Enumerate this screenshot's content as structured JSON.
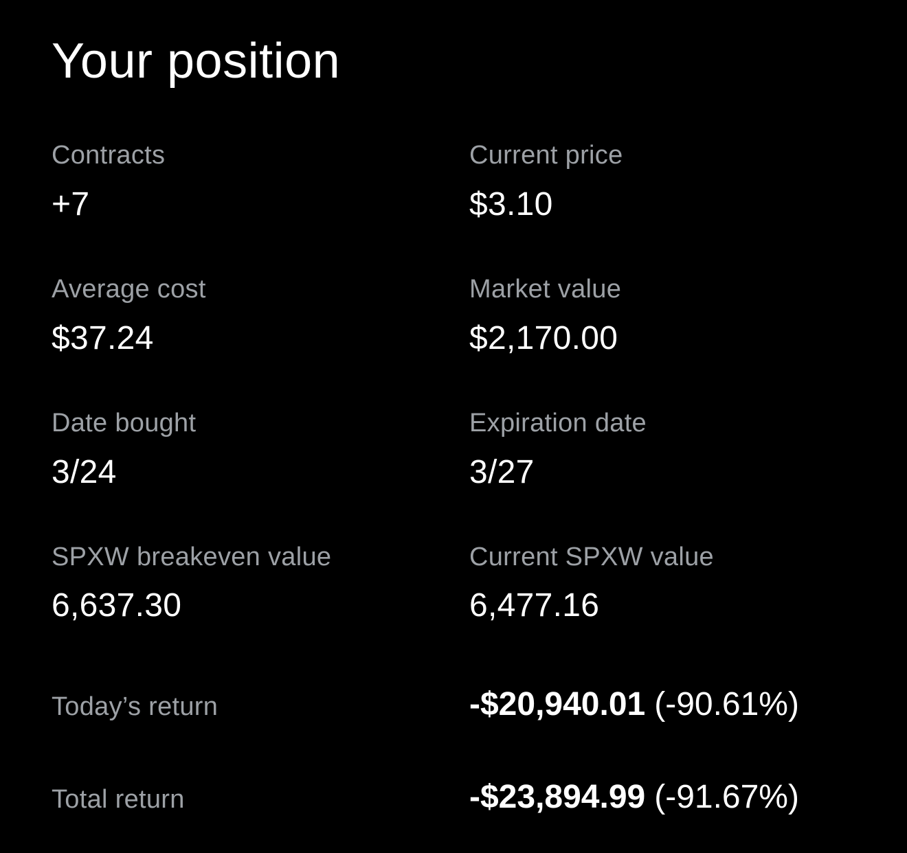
{
  "theme": {
    "background": "#000000",
    "label-color": "#9da1a6",
    "value-color": "#ffffff"
  },
  "title": "Your position",
  "stats": [
    {
      "label": "Contracts",
      "value": "+7"
    },
    {
      "label": "Current price",
      "value": "$3.10"
    },
    {
      "label": "Average cost",
      "value": "$37.24"
    },
    {
      "label": "Market value",
      "value": "$2,170.00"
    },
    {
      "label": "Date bought",
      "value": "3/24"
    },
    {
      "label": "Expiration date",
      "value": "3/27"
    },
    {
      "label": "SPXW breakeven value",
      "value": "6,637.30"
    },
    {
      "label": "Current SPXW value",
      "value": "6,477.16"
    }
  ],
  "returns": [
    {
      "label": "Today’s return",
      "amount": "-$20,940.01",
      "percent": "(-90.61%)"
    },
    {
      "label": "Total return",
      "amount": "-$23,894.99",
      "percent": "(-91.67%)"
    }
  ]
}
